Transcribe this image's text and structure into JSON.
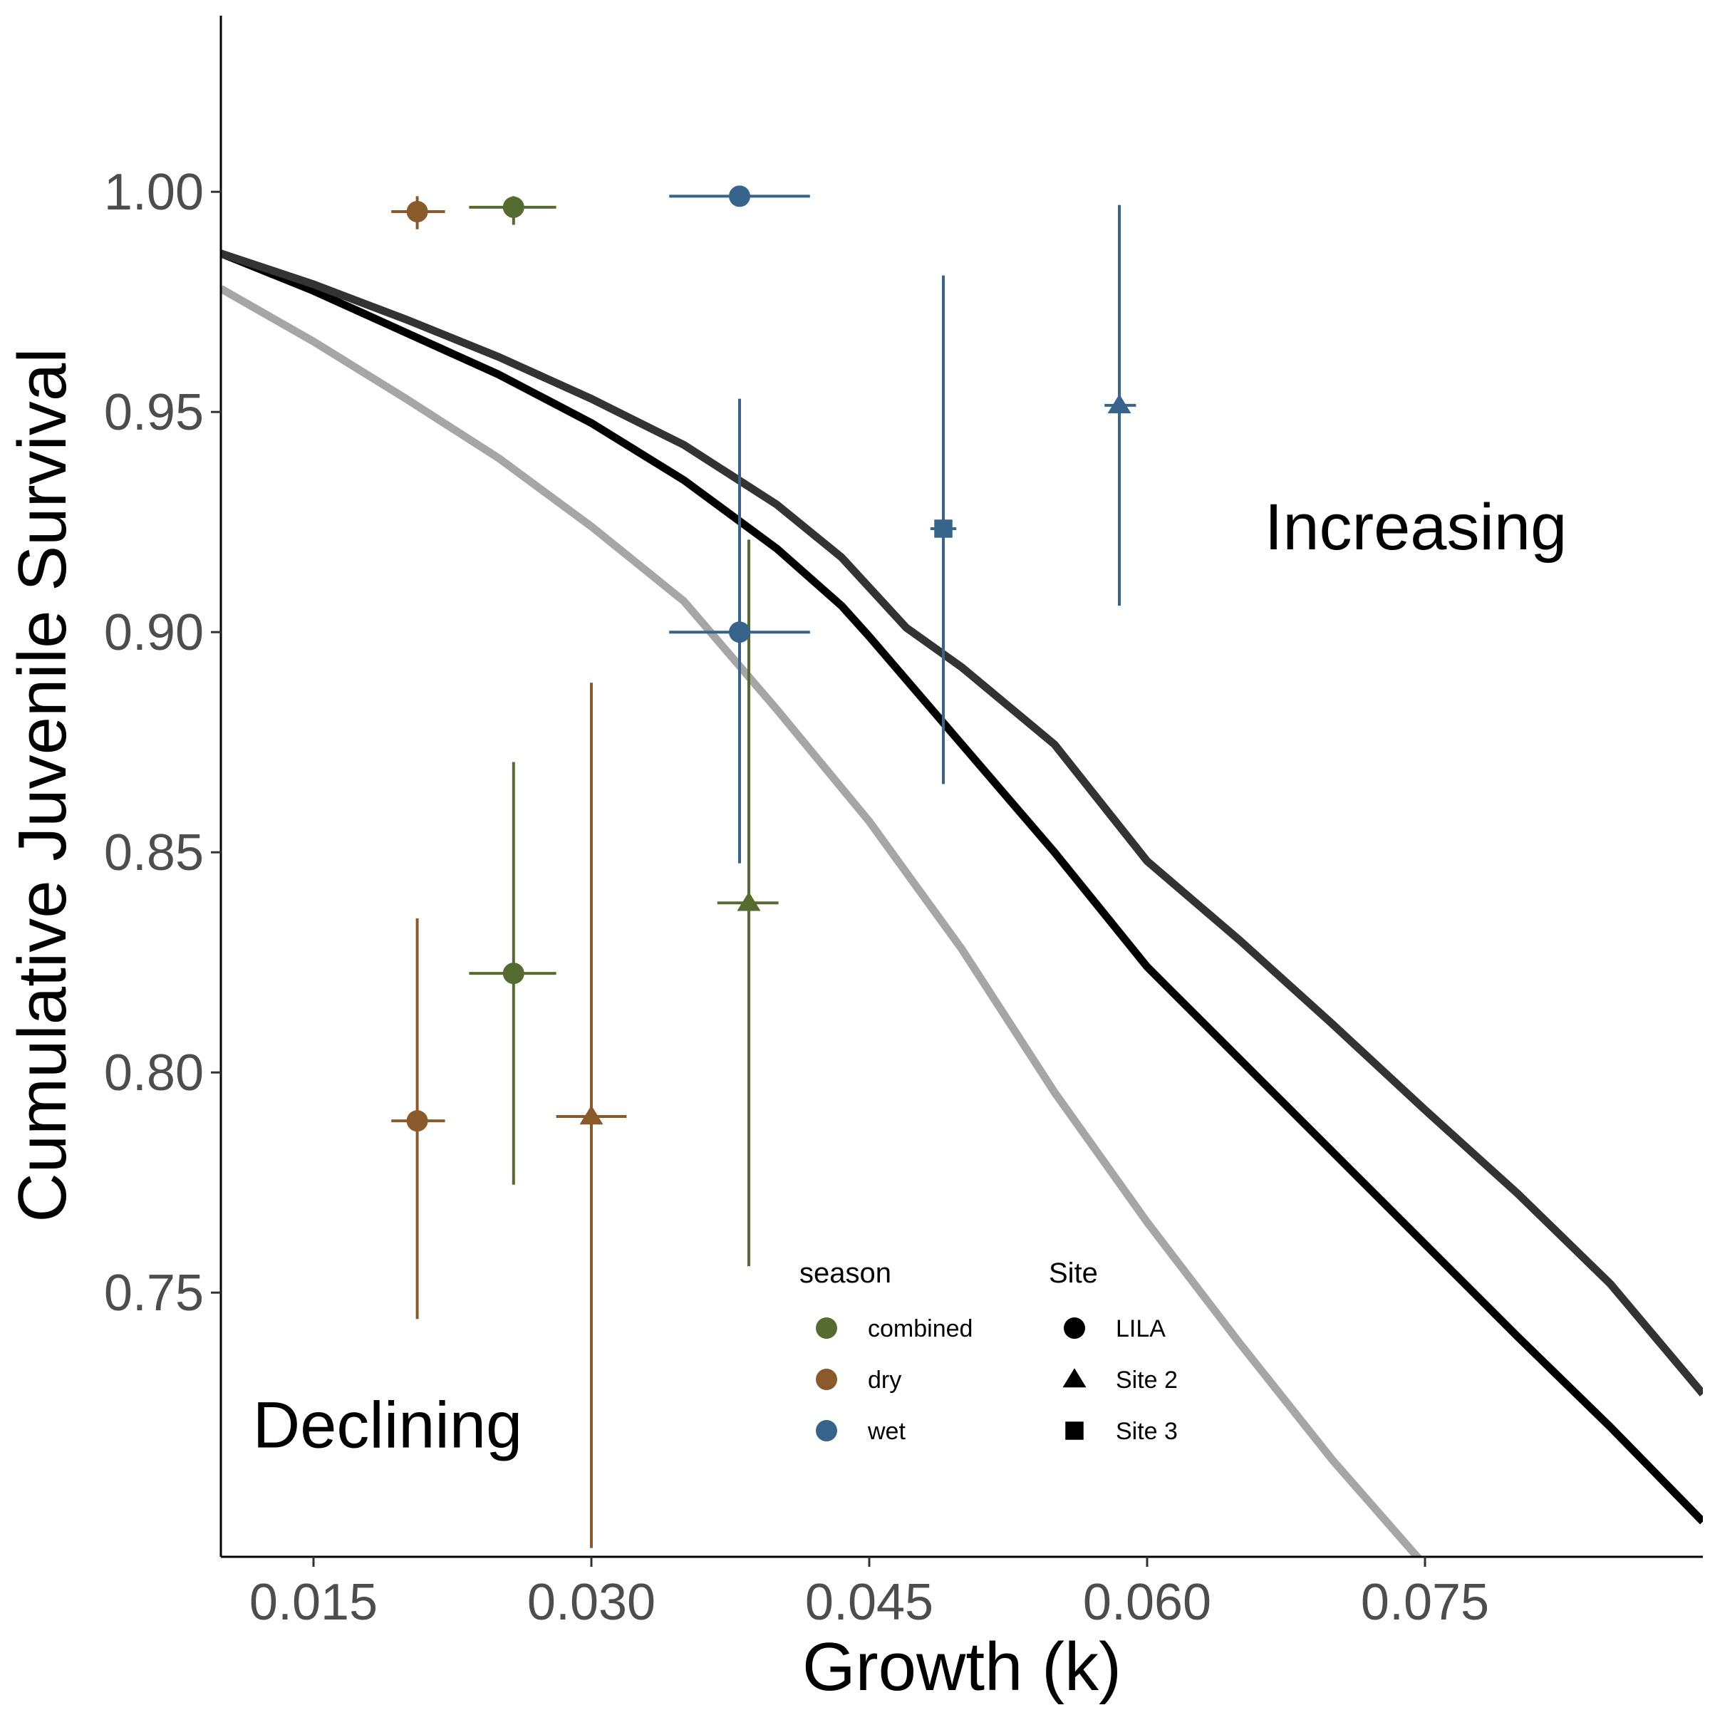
{
  "chart_data": {
    "type": "scatter",
    "xlabel": "Growth (k)",
    "ylabel": "Cumulative Juvenile Survival",
    "xlim": [
      0.01,
      0.09
    ],
    "ylim": [
      0.69,
      1.04
    ],
    "x_ticks": [
      "0.015",
      "0.030",
      "0.045",
      "0.060",
      "0.075"
    ],
    "y_ticks": [
      "0.75",
      "0.80",
      "0.85",
      "0.90",
      "0.95",
      "1.00"
    ],
    "grid": false,
    "annotations": [
      {
        "text": "Increasing",
        "x": 0.0745,
        "y": 0.924
      },
      {
        "text": "Declining",
        "x": 0.019,
        "y": 0.72
      }
    ],
    "season_colors": {
      "combined": "#556b2f",
      "dry": "#8b5a2b",
      "wet": "#36648b"
    },
    "site_shapes": {
      "LILA": "circle",
      "Site 2": "triangle",
      "Site 3": "square"
    },
    "legend": {
      "placement": "bottom-right",
      "season_title": "season",
      "season_items": [
        "combined",
        "dry",
        "wet"
      ],
      "site_title": "Site",
      "site_items": [
        "LILA",
        "Site 2",
        "Site 3"
      ]
    },
    "points": [
      {
        "season": "dry",
        "site": "LILA",
        "x": 0.0206,
        "y": 0.9955,
        "x_lo": 0.0192,
        "x_hi": 0.0221,
        "y_lo": 0.9915,
        "y_hi": 0.999
      },
      {
        "season": "combined",
        "site": "LILA",
        "x": 0.0258,
        "y": 0.9965,
        "x_lo": 0.0234,
        "x_hi": 0.0281,
        "y_lo": 0.9925,
        "y_hi": 0.999
      },
      {
        "season": "wet",
        "site": "LILA",
        "x": 0.038,
        "y": 0.999,
        "x_lo": 0.0342,
        "x_hi": 0.0418,
        "y_lo": 0.999,
        "y_hi": 0.999
      },
      {
        "season": "wet",
        "site": "Site 3",
        "x": 0.049,
        "y": 0.9235,
        "x_lo": 0.0483,
        "x_hi": 0.0497,
        "y_lo": 0.8655,
        "y_hi": 0.981
      },
      {
        "season": "wet",
        "site": "Site 2",
        "x": 0.0585,
        "y": 0.9515,
        "x_lo": 0.0577,
        "x_hi": 0.0594,
        "y_lo": 0.906,
        "y_hi": 0.997
      },
      {
        "season": "wet",
        "site": "LILA",
        "x": 0.038,
        "y": 0.9,
        "x_lo": 0.0342,
        "x_hi": 0.0418,
        "y_lo": 0.8475,
        "y_hi": 0.953
      },
      {
        "season": "combined",
        "site": "Site 2",
        "x": 0.0385,
        "y": 0.8385,
        "x_lo": 0.0368,
        "x_hi": 0.0401,
        "y_lo": 0.756,
        "y_hi": 0.921
      },
      {
        "season": "combined",
        "site": "LILA",
        "x": 0.0258,
        "y": 0.8225,
        "x_lo": 0.0234,
        "x_hi": 0.0281,
        "y_lo": 0.7745,
        "y_hi": 0.8705
      },
      {
        "season": "dry",
        "site": "LILA",
        "x": 0.0206,
        "y": 0.789,
        "x_lo": 0.0192,
        "x_hi": 0.0221,
        "y_lo": 0.744,
        "y_hi": 0.835
      },
      {
        "season": "dry",
        "site": "Site 2",
        "x": 0.03,
        "y": 0.79,
        "x_lo": 0.0281,
        "x_hi": 0.0319,
        "y_lo": 0.692,
        "y_hi": 0.8885
      }
    ],
    "curves": [
      {
        "color": "#000000",
        "x": [
          0.01,
          0.015,
          0.02,
          0.025,
          0.03,
          0.035,
          0.04,
          0.0435,
          0.045,
          0.05,
          0.055,
          0.06,
          0.065,
          0.07,
          0.075,
          0.08,
          0.085,
          0.09
        ],
        "y": [
          0.986,
          0.9775,
          0.968,
          0.9585,
          0.9475,
          0.9345,
          0.919,
          0.906,
          0.899,
          0.8745,
          0.85,
          0.824,
          0.803,
          0.782,
          0.761,
          0.74,
          0.7195,
          0.698
        ]
      },
      {
        "color": "#333333",
        "x": [
          0.01,
          0.015,
          0.02,
          0.025,
          0.03,
          0.035,
          0.04,
          0.0435,
          0.047,
          0.05,
          0.055,
          0.06,
          0.065,
          0.07,
          0.075,
          0.08,
          0.085,
          0.09
        ],
        "y": [
          0.986,
          0.979,
          0.971,
          0.9625,
          0.953,
          0.9425,
          0.929,
          0.917,
          0.901,
          0.892,
          0.8745,
          0.848,
          0.83,
          0.811,
          0.7915,
          0.7725,
          0.752,
          0.727
        ]
      },
      {
        "color": "#a6a6a6",
        "x": [
          0.01,
          0.015,
          0.02,
          0.025,
          0.03,
          0.035,
          0.04,
          0.045,
          0.05,
          0.055,
          0.06,
          0.065,
          0.07,
          0.075,
          0.08
        ],
        "y": [
          0.978,
          0.966,
          0.953,
          0.9395,
          0.924,
          0.907,
          0.8825,
          0.857,
          0.828,
          0.7955,
          0.766,
          0.7385,
          0.712,
          0.688,
          0.665
        ]
      }
    ]
  }
}
